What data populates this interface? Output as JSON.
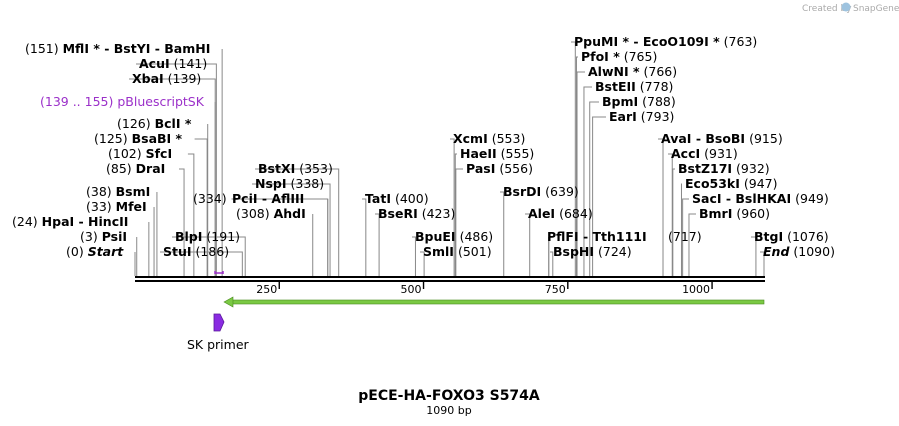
{
  "watermark": {
    "prefix": "Created by",
    "brand": "SnapGene"
  },
  "plasmid": {
    "name": "pECE-HA-FOXO3 S574A",
    "length_label": "1090 bp",
    "length": 1090
  },
  "axis": {
    "ticks": [
      250,
      500,
      750,
      1000
    ]
  },
  "colors": {
    "feature_purple": "#9b30c9",
    "primer_purple": "#8a2be2",
    "orf_green": "#7ac943",
    "backbone": "#000000",
    "leader": "#888888"
  },
  "labels": [
    {
      "pos": "(0)",
      "name": "Start",
      "italic": true,
      "bp": 0
    },
    {
      "pos": "(3)",
      "name": "PsiI",
      "bp": 3
    },
    {
      "pos": "(24)",
      "name": "HpaI  -  HincII",
      "bp": 24
    },
    {
      "pos": "(33)",
      "name": "MfeI",
      "bp": 33
    },
    {
      "pos": "(38)",
      "name": "BsmI",
      "bp": 38
    },
    {
      "pos": "(85)",
      "name": "DraI",
      "bp": 85
    },
    {
      "pos": "(102)",
      "name": "SfcI",
      "bp": 102
    },
    {
      "pos": "(125)",
      "name": "BsaBI *",
      "bp": 125
    },
    {
      "pos": "(126)",
      "name": "BclI *",
      "bp": 126
    },
    {
      "pos": "(139 .. 155)",
      "name": "pBluescriptSK",
      "feature": true,
      "bp": 139
    },
    {
      "pos": "(139)",
      "name": "XbaI",
      "bp": 139
    },
    {
      "pos": "(141)",
      "name": "AcuI",
      "bp": 141
    },
    {
      "pos": "(151)",
      "name": "MflI *  -  BstYI  -  BamHI",
      "bp": 151
    },
    {
      "pos": "(186)",
      "name": "StuI",
      "bp": 186
    },
    {
      "pos": "(191)",
      "name": "BlpI",
      "bp": 191
    },
    {
      "pos": "(334)",
      "name": "",
      "bp": 334
    },
    {
      "pos": "(308)",
      "name": "AhdI",
      "bp": 308
    },
    {
      "pos": "",
      "name": "PciI  -  AflIII",
      "bp": 334
    },
    {
      "pos": "(338)",
      "name": "NspI",
      "bp": 338
    },
    {
      "pos": "(353)",
      "name": "BstXI",
      "bp": 353
    },
    {
      "pos": "(400)",
      "name": "TatI",
      "bp": 400
    },
    {
      "pos": "(423)",
      "name": "BseRI",
      "bp": 423
    },
    {
      "pos": "(486)",
      "name": "BpuEI",
      "bp": 486
    },
    {
      "pos": "(501)",
      "name": "SmlI",
      "bp": 501
    },
    {
      "pos": "(553)",
      "name": "XcmI",
      "bp": 553
    },
    {
      "pos": "(555)",
      "name": "HaeII",
      "bp": 555
    },
    {
      "pos": "(556)",
      "name": "PasI",
      "bp": 556
    },
    {
      "pos": "(639)",
      "name": "BsrDI",
      "bp": 639
    },
    {
      "pos": "(684)",
      "name": "AleI",
      "bp": 684
    },
    {
      "pos": "",
      "name": "PflFI  -  Tth111I",
      "bp": 717
    },
    {
      "pos": "(724)",
      "name": "BspHI",
      "bp": 724
    },
    {
      "pos": "(763)",
      "name": "PpuMI *  -  EcoO109I *",
      "bp": 763
    },
    {
      "pos": "(765)",
      "name": "PfoI *",
      "bp": 765
    },
    {
      "pos": "(766)",
      "name": "AlwNI *",
      "bp": 766
    },
    {
      "pos": "(778)",
      "name": "BstEII",
      "bp": 778
    },
    {
      "pos": "(788)",
      "name": "BpmI",
      "bp": 788
    },
    {
      "pos": "(793)",
      "name": "EarI",
      "bp": 793
    },
    {
      "pos": "(915)",
      "name": "AvaI  -  BsoBI",
      "bp": 915
    },
    {
      "pos": "(931)",
      "name": "AccI",
      "bp": 931
    },
    {
      "pos": "(932)",
      "name": "BstZ17I",
      "bp": 932
    },
    {
      "pos": "(947)",
      "name": "Eco53kI",
      "bp": 947
    },
    {
      "pos": "(949)",
      "name": "SacI  -  BslHKAI",
      "bp": 949
    },
    {
      "pos": "(960)",
      "name": "BmrI",
      "bp": 960
    },
    {
      "pos": "(717)",
      "name": "",
      "bp": 717
    },
    {
      "pos": "(1076)",
      "name": "BtgI",
      "bp": 1076
    },
    {
      "pos": "(1090)",
      "name": "End",
      "italic": true,
      "bp": 1090
    }
  ],
  "primer": {
    "name": "SK primer"
  }
}
